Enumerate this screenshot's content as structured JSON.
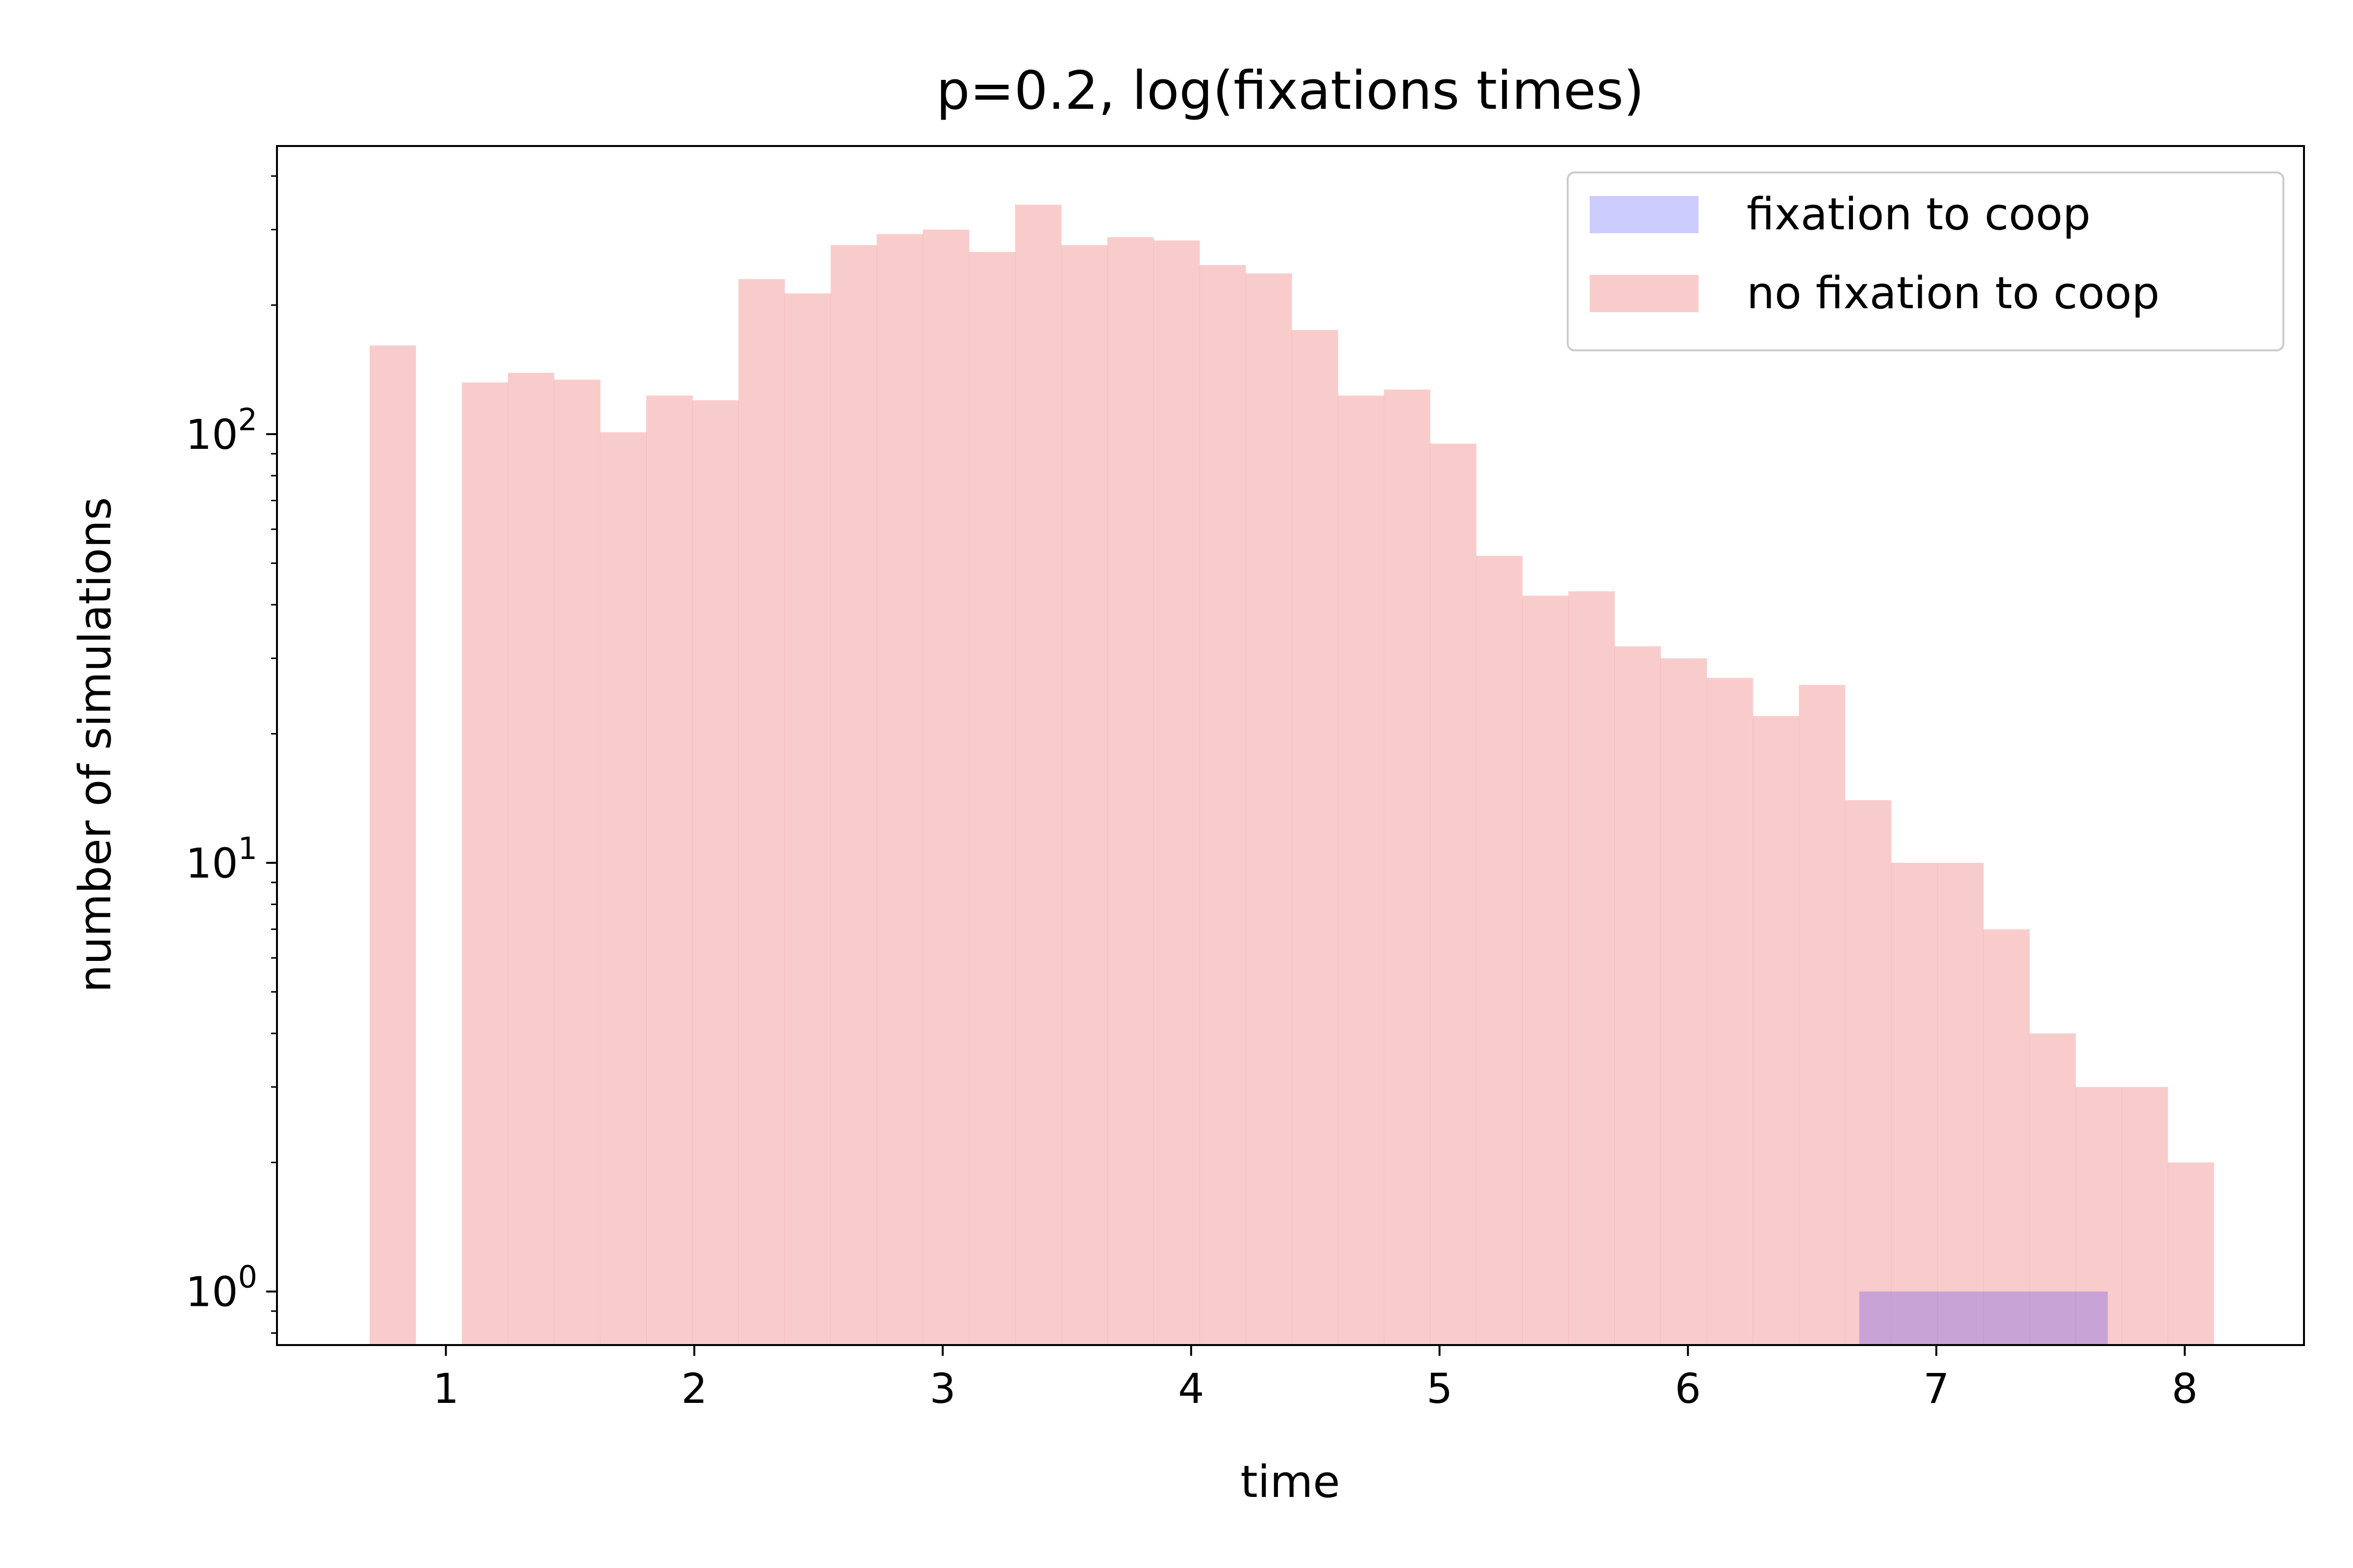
{
  "chart_data": {
    "type": "bar",
    "title": "p=0.2, log(fixations times)",
    "xlabel": "time",
    "ylabel": "number of simulations",
    "xlim": [
      0.32,
      8.48
    ],
    "ylim": [
      0.75,
      470
    ],
    "yscale": "log",
    "x_ticks": [
      1,
      2,
      3,
      4,
      5,
      6,
      7,
      8
    ],
    "y_ticks": [
      {
        "value": 1,
        "base": "10",
        "exp": "0"
      },
      {
        "value": 10,
        "base": "10",
        "exp": "1"
      },
      {
        "value": 100,
        "base": "10",
        "exp": "2"
      }
    ],
    "grid": false,
    "legend_position": "upper right",
    "series": [
      {
        "name": "fixation to coop",
        "color": "#0000ff",
        "alpha": 0.2,
        "bins": [
          [
            6.69,
            7.69,
            1
          ]
        ]
      },
      {
        "name": "no fixation to coop",
        "color": "#f08080",
        "alpha": 0.4,
        "bin_start": 0.693,
        "bin_width": 0.1856,
        "values": [
          161,
          0,
          132,
          139,
          134,
          101,
          123,
          120,
          230,
          213,
          276,
          293,
          300,
          266,
          343,
          276,
          288,
          283,
          248,
          237,
          175,
          123,
          127,
          95,
          52,
          42,
          43,
          32,
          30,
          27,
          22,
          26,
          14,
          10,
          10,
          7,
          4,
          3,
          3,
          2
        ]
      }
    ]
  }
}
